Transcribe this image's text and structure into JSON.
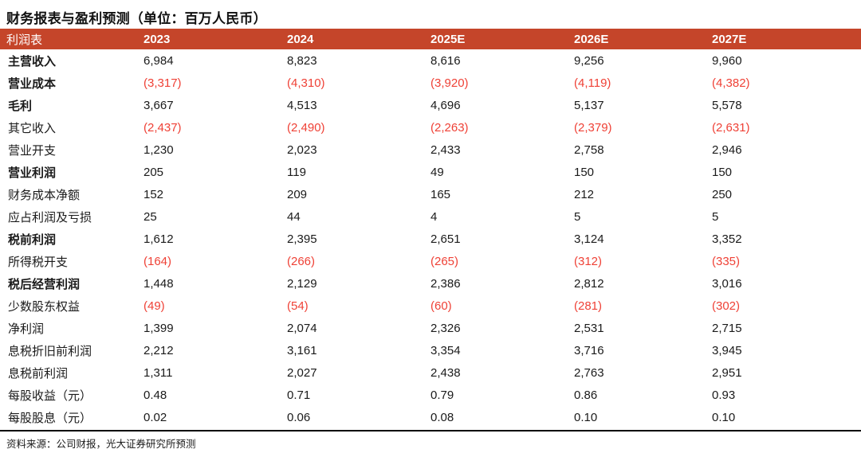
{
  "title": "财务报表与盈利预测（单位：百万人民币）",
  "colors": {
    "header_bg": "#C5452A",
    "negative": "#EF4136",
    "text": "#1A1A1A"
  },
  "table": {
    "columns": [
      "利润表",
      "2023",
      "2024",
      "2025E",
      "2026E",
      "2027E"
    ],
    "rows": [
      {
        "label": "主营收入",
        "bold": true,
        "values": [
          "6,984",
          "8,823",
          "8,616",
          "9,256",
          "9,960"
        ]
      },
      {
        "label": "营业成本",
        "bold": true,
        "values": [
          "(3,317)",
          "(4,310)",
          "(3,920)",
          "(4,119)",
          "(4,382)"
        ]
      },
      {
        "label": "毛利",
        "bold": true,
        "values": [
          "3,667",
          "4,513",
          "4,696",
          "5,137",
          "5,578"
        ]
      },
      {
        "label": "其它收入",
        "bold": false,
        "values": [
          "(2,437)",
          "(2,490)",
          "(2,263)",
          "(2,379)",
          "(2,631)"
        ]
      },
      {
        "label": "营业开支",
        "bold": false,
        "values": [
          "1,230",
          "2,023",
          "2,433",
          "2,758",
          "2,946"
        ]
      },
      {
        "label": "营业利润",
        "bold": true,
        "values": [
          "205",
          "119",
          "49",
          "150",
          "150"
        ]
      },
      {
        "label": "财务成本净额",
        "bold": false,
        "values": [
          "152",
          "209",
          "165",
          "212",
          "250"
        ]
      },
      {
        "label": "应占利润及亏损",
        "bold": false,
        "values": [
          "25",
          "44",
          "4",
          "5",
          "5"
        ]
      },
      {
        "label": "税前利润",
        "bold": true,
        "values": [
          "1,612",
          "2,395",
          "2,651",
          "3,124",
          "3,352"
        ]
      },
      {
        "label": "所得税开支",
        "bold": false,
        "values": [
          "(164)",
          "(266)",
          "(265)",
          "(312)",
          "(335)"
        ]
      },
      {
        "label": "税后经营利润",
        "bold": true,
        "values": [
          "1,448",
          "2,129",
          "2,386",
          "2,812",
          "3,016"
        ]
      },
      {
        "label": "少数股东权益",
        "bold": false,
        "values": [
          "(49)",
          "(54)",
          "(60)",
          "(281)",
          "(302)"
        ]
      },
      {
        "label": "净利润",
        "bold": false,
        "values": [
          "1,399",
          "2,074",
          "2,326",
          "2,531",
          "2,715"
        ]
      },
      {
        "label": "息税折旧前利润",
        "bold": false,
        "values": [
          "2,212",
          "3,161",
          "3,354",
          "3,716",
          "3,945"
        ]
      },
      {
        "label": "息税前利润",
        "bold": false,
        "values": [
          "1,311",
          "2,027",
          "2,438",
          "2,763",
          "2,951"
        ]
      },
      {
        "label": "每股收益（元）",
        "bold": false,
        "values": [
          "0.48",
          "0.71",
          "0.79",
          "0.86",
          "0.93"
        ]
      },
      {
        "label": "每股股息（元）",
        "bold": false,
        "values": [
          "0.02",
          "0.06",
          "0.08",
          "0.10",
          "0.10"
        ]
      }
    ]
  },
  "footer": {
    "source": "资料来源：公司财报，光大证券研究所预测"
  }
}
